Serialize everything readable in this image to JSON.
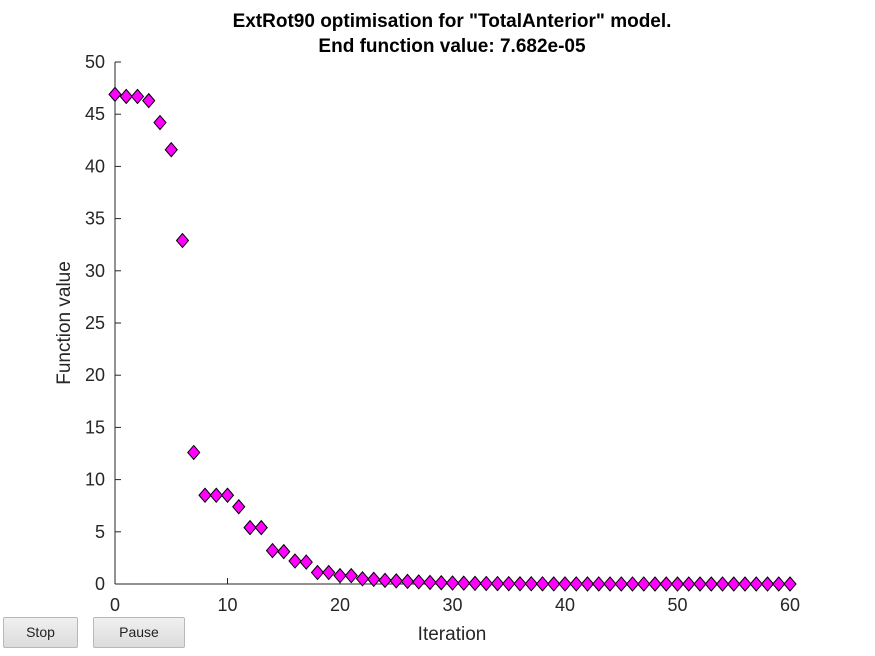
{
  "controls": {
    "stop_label": "Stop",
    "pause_label": "Pause"
  },
  "chart_data": {
    "type": "scatter",
    "title": "ExtRot90 optimisation for \"TotalAnterior\" model.",
    "subtitle": "End function value: 7.682e-05",
    "xlabel": "Iteration",
    "ylabel": "Function value",
    "xlim": [
      0,
      60
    ],
    "ylim": [
      0,
      50
    ],
    "xticks": [
      0,
      10,
      20,
      30,
      40,
      50,
      60
    ],
    "yticks": [
      0,
      5,
      10,
      15,
      20,
      25,
      30,
      35,
      40,
      45,
      50
    ],
    "grid": false,
    "marker": "diamond",
    "marker_color": "#ff00ff",
    "marker_edge_color": "#000000",
    "x": [
      0,
      1,
      2,
      3,
      4,
      5,
      6,
      7,
      8,
      9,
      10,
      11,
      12,
      13,
      14,
      15,
      16,
      17,
      18,
      19,
      20,
      21,
      22,
      23,
      24,
      25,
      26,
      27,
      28,
      29,
      30,
      31,
      32,
      33,
      34,
      35,
      36,
      37,
      38,
      39,
      40,
      41,
      42,
      43,
      44,
      45,
      46,
      47,
      48,
      49,
      50,
      51,
      52,
      53,
      54,
      55,
      56,
      57,
      58,
      59,
      60
    ],
    "y": [
      46.9,
      46.7,
      46.7,
      46.3,
      44.2,
      41.6,
      32.9,
      12.6,
      8.5,
      8.5,
      8.5,
      7.4,
      5.4,
      5.4,
      3.2,
      3.1,
      2.2,
      2.1,
      1.1,
      1.1,
      0.8,
      0.8,
      0.5,
      0.45,
      0.35,
      0.3,
      0.25,
      0.2,
      0.15,
      0.12,
      0.1,
      0.08,
      0.06,
      0.05,
      0.04,
      0.03,
      0.02,
      0.02,
      0.015,
      0.01,
      0.01,
      0.008,
      0.006,
      0.005,
      0.004,
      0.003,
      0.002,
      0.002,
      0.001,
      0.001,
      0.001,
      0.0008,
      0.0006,
      0.0005,
      0.0004,
      0.0003,
      0.0002,
      0.0002,
      0.0001,
      0.0001,
      8e-05
    ]
  }
}
